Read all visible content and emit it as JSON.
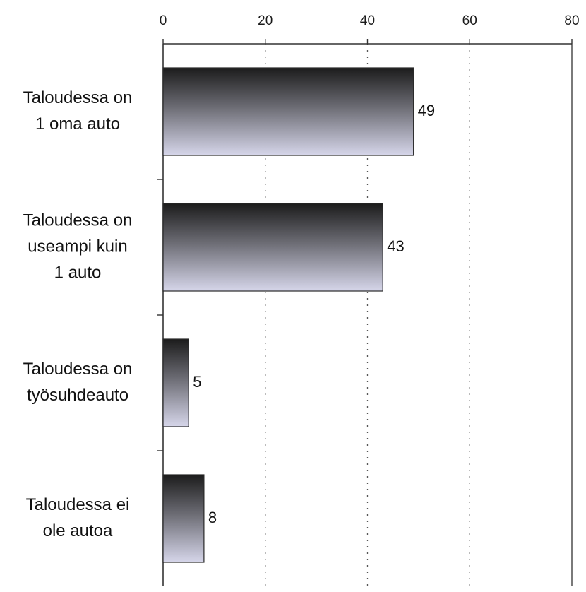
{
  "chart_data": {
    "type": "bar",
    "orientation": "horizontal",
    "categories": [
      [
        "Taloudessa on",
        "1 oma auto"
      ],
      [
        "Taloudessa on",
        "useampi kuin",
        "1 auto"
      ],
      [
        "Taloudessa on",
        "työsuhdeauto"
      ],
      [
        "Taloudessa ei",
        "ole autoa"
      ]
    ],
    "values": [
      49,
      43,
      5,
      8
    ],
    "data_labels": [
      "49",
      "43",
      "5",
      "8"
    ],
    "x_ticks": [
      0,
      20,
      40,
      60,
      80
    ],
    "x_tick_labels": [
      "0",
      "20",
      "40",
      "60",
      "80"
    ],
    "xlim": [
      0,
      80
    ],
    "x_axis_position": "top",
    "grid": "vertical dotted",
    "legend": "none",
    "title": "",
    "xlabel": "",
    "ylabel": "",
    "colors": {
      "bar_top": "#1c1c1c",
      "bar_mid": "#6c6c74",
      "bar_bottom": "#d6d6ea",
      "axis": "#333333",
      "grid": "#555555"
    }
  }
}
